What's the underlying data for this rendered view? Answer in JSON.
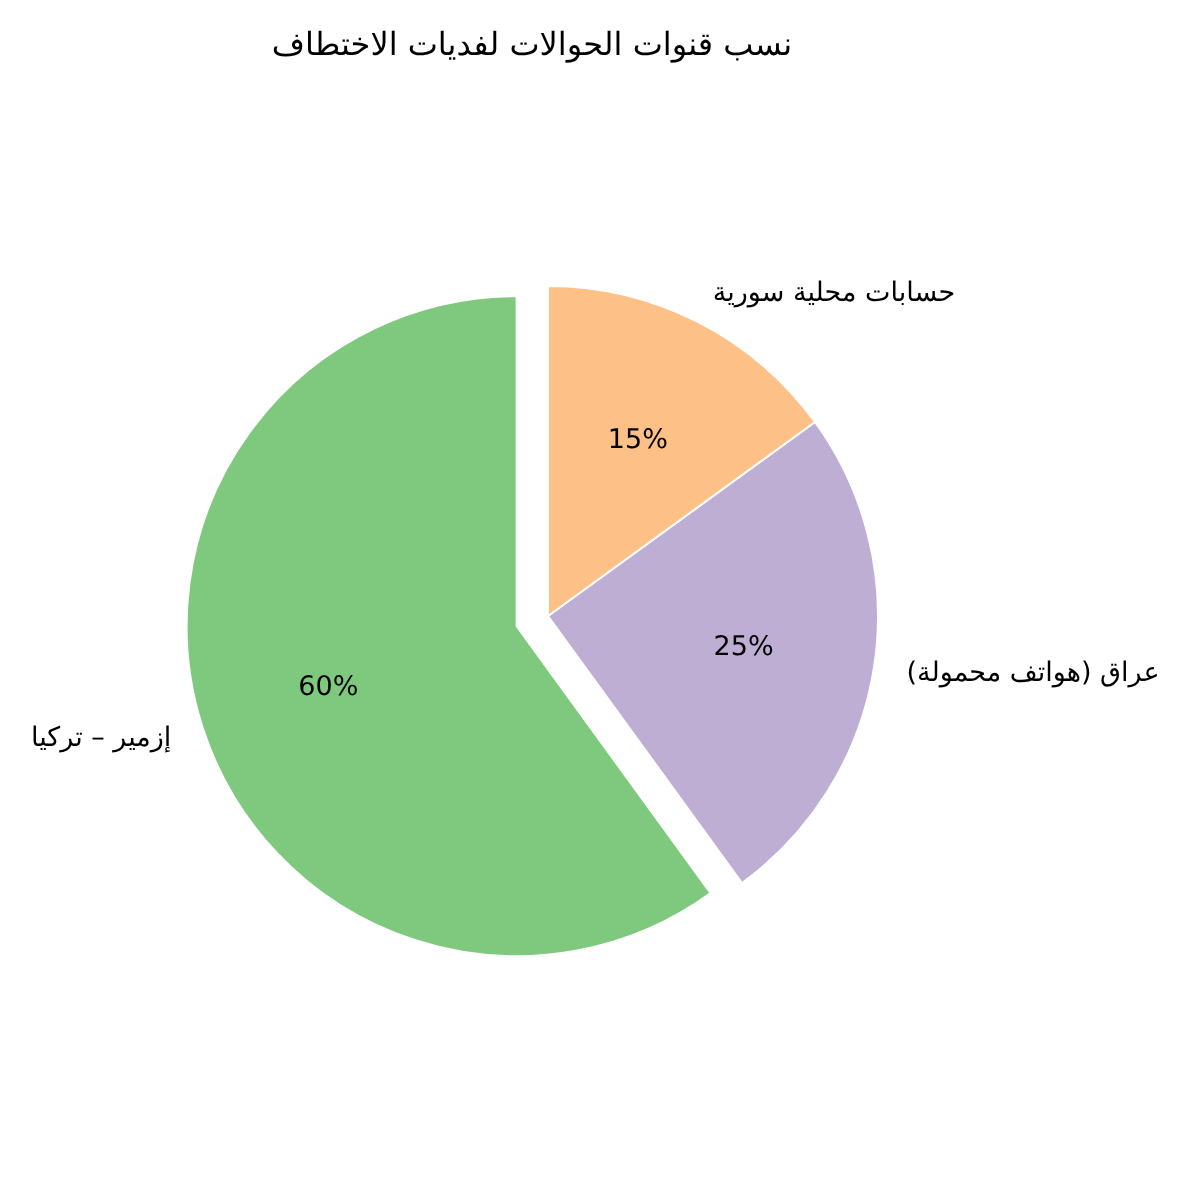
{
  "chart_data": {
    "type": "pie",
    "title": "نسب قنوات الحوالات لفديات الاختطاف",
    "categories": [
      "إزمير – تركيا",
      "عراق (هواتف محمولة)",
      "حسابات محلية سورية"
    ],
    "values": [
      60,
      25,
      15
    ],
    "colors": [
      "#7fc97f",
      "#beaed4",
      "#fdc086"
    ],
    "value_labels": [
      "60%",
      "25%",
      "15%"
    ]
  }
}
